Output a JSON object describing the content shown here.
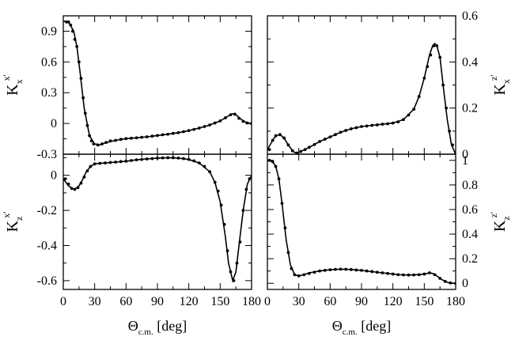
{
  "chart_data": [
    {
      "id": "kxx",
      "type": "line",
      "ylabel": {
        "base": "K",
        "sub": "x",
        "sup": "x'"
      },
      "xlim": [
        0,
        180
      ],
      "ylim": [
        -0.3,
        1.05
      ],
      "yticks": [
        -0.3,
        0,
        0.3,
        0.6,
        0.9
      ],
      "ytick_labels": [
        "-0.3",
        "0",
        "0.3",
        "0.6",
        "0.9"
      ],
      "xticks": [
        0,
        30,
        60,
        90,
        120,
        150,
        180
      ],
      "xtick_labels": [],
      "yaxis_side": "left",
      "series": [
        {
          "style": "line",
          "x": [
            0,
            5,
            10,
            13,
            16,
            20,
            25,
            30,
            35,
            40,
            50,
            60,
            70,
            80,
            90,
            100,
            110,
            120,
            130,
            140,
            150,
            155,
            158,
            162,
            165,
            170,
            175,
            178,
            180
          ],
          "y": [
            1.0,
            0.99,
            0.9,
            0.75,
            0.5,
            0.15,
            -0.12,
            -0.2,
            -0.21,
            -0.19,
            -0.165,
            -0.148,
            -0.14,
            -0.13,
            -0.118,
            -0.105,
            -0.09,
            -0.07,
            -0.045,
            -0.015,
            0.025,
            0.055,
            0.075,
            0.095,
            0.085,
            0.04,
            0.01,
            0.0,
            0.0
          ]
        },
        {
          "style": "points",
          "x": [
            3,
            5,
            7,
            9,
            11,
            13,
            15,
            17,
            19,
            21,
            23,
            25,
            27,
            29,
            33,
            37,
            41,
            45,
            50,
            55,
            60,
            65,
            70,
            75,
            80,
            85,
            90,
            95,
            100,
            105,
            110,
            115,
            120,
            125,
            130,
            135,
            140,
            145,
            150,
            155,
            160,
            164,
            168,
            172,
            176,
            180
          ],
          "y": [
            0.99,
            0.99,
            0.96,
            0.9,
            0.82,
            0.75,
            0.6,
            0.44,
            0.25,
            0.1,
            -0.02,
            -0.12,
            -0.17,
            -0.2,
            -0.21,
            -0.2,
            -0.185,
            -0.17,
            -0.165,
            -0.155,
            -0.148,
            -0.144,
            -0.14,
            -0.135,
            -0.13,
            -0.124,
            -0.118,
            -0.11,
            -0.105,
            -0.097,
            -0.09,
            -0.08,
            -0.07,
            -0.058,
            -0.045,
            -0.03,
            -0.015,
            0.005,
            0.025,
            0.055,
            0.085,
            0.09,
            0.05,
            0.02,
            0.005,
            0.0
          ]
        }
      ]
    },
    {
      "id": "kxz",
      "type": "line",
      "ylabel": {
        "base": "K",
        "sub": "x",
        "sup": "z'"
      },
      "xlim": [
        0,
        180
      ],
      "ylim": [
        0,
        0.6
      ],
      "yticks": [
        0,
        0.2,
        0.4,
        0.6
      ],
      "ytick_labels": [
        "0",
        "0.2",
        "0.4",
        "0.6"
      ],
      "xticks": [
        0,
        30,
        60,
        90,
        120,
        150,
        180
      ],
      "xtick_labels": [],
      "yaxis_side": "right",
      "series": [
        {
          "style": "line",
          "x": [
            0,
            5,
            8,
            12,
            16,
            20,
            25,
            28,
            32,
            40,
            50,
            60,
            70,
            80,
            90,
            100,
            110,
            120,
            130,
            140,
            145,
            150,
            155,
            158,
            160,
            162,
            165,
            168,
            172,
            176,
            180
          ],
          "y": [
            0.02,
            0.06,
            0.08,
            0.085,
            0.07,
            0.04,
            0.01,
            0.005,
            0.012,
            0.03,
            0.055,
            0.075,
            0.095,
            0.11,
            0.12,
            0.125,
            0.13,
            0.135,
            0.15,
            0.195,
            0.25,
            0.33,
            0.43,
            0.47,
            0.48,
            0.47,
            0.42,
            0.3,
            0.15,
            0.04,
            0.0
          ]
        },
        {
          "style": "points",
          "x": [
            2,
            5,
            8,
            12,
            16,
            20,
            24,
            28,
            32,
            36,
            40,
            45,
            50,
            55,
            60,
            65,
            70,
            75,
            80,
            85,
            90,
            95,
            100,
            105,
            110,
            115,
            120,
            125,
            130,
            135,
            140,
            145,
            150,
            153,
            156,
            159,
            162,
            165,
            168,
            171,
            174,
            177,
            180
          ],
          "y": [
            0.02,
            0.06,
            0.08,
            0.085,
            0.07,
            0.04,
            0.015,
            0.005,
            0.012,
            0.02,
            0.03,
            0.042,
            0.055,
            0.065,
            0.075,
            0.085,
            0.095,
            0.103,
            0.11,
            0.115,
            0.12,
            0.122,
            0.125,
            0.127,
            0.13,
            0.132,
            0.135,
            0.14,
            0.15,
            0.17,
            0.195,
            0.25,
            0.33,
            0.38,
            0.43,
            0.47,
            0.47,
            0.42,
            0.3,
            0.2,
            0.1,
            0.04,
            0.0
          ]
        }
      ]
    },
    {
      "id": "kzx",
      "type": "line",
      "ylabel": {
        "base": "K",
        "sub": "z",
        "sup": "x'"
      },
      "xlim": [
        0,
        180
      ],
      "ylim": [
        -0.65,
        0.12
      ],
      "yticks": [
        -0.6,
        -0.4,
        -0.2,
        0
      ],
      "ytick_labels": [
        "-0.6",
        "-0.4",
        "-0.2",
        "0"
      ],
      "xticks": [
        0,
        30,
        60,
        90,
        120,
        150,
        180
      ],
      "xtick_labels": [
        "0",
        "30",
        "60",
        "90",
        "120",
        "150",
        "180"
      ],
      "xlabel": {
        "base": "Θ",
        "sub": "c.m.",
        "rest": " [deg]"
      },
      "yaxis_side": "left",
      "series": [
        {
          "style": "line",
          "x": [
            0,
            5,
            10,
            14,
            18,
            22,
            26,
            30,
            40,
            50,
            60,
            70,
            80,
            90,
            100,
            110,
            120,
            130,
            140,
            145,
            150,
            155,
            158,
            162,
            165,
            168,
            172,
            176,
            180
          ],
          "y": [
            -0.02,
            -0.06,
            -0.08,
            -0.07,
            -0.03,
            0.02,
            0.05,
            0.065,
            0.07,
            0.075,
            0.08,
            0.088,
            0.093,
            0.098,
            0.1,
            0.098,
            0.09,
            0.07,
            0.02,
            -0.04,
            -0.15,
            -0.35,
            -0.5,
            -0.6,
            -0.55,
            -0.4,
            -0.2,
            -0.05,
            0.0
          ]
        },
        {
          "style": "points",
          "x": [
            2,
            5,
            8,
            11,
            14,
            17,
            20,
            23,
            26,
            30,
            35,
            40,
            45,
            50,
            55,
            60,
            65,
            70,
            75,
            80,
            85,
            90,
            95,
            100,
            105,
            110,
            115,
            120,
            125,
            130,
            135,
            140,
            145,
            148,
            151,
            154,
            157,
            160,
            163,
            166,
            169,
            172,
            175,
            178
          ],
          "y": [
            -0.02,
            -0.05,
            -0.075,
            -0.08,
            -0.07,
            -0.045,
            -0.01,
            0.025,
            0.05,
            0.065,
            0.068,
            0.07,
            0.073,
            0.075,
            0.078,
            0.08,
            0.084,
            0.088,
            0.09,
            0.093,
            0.095,
            0.098,
            0.099,
            0.1,
            0.1,
            0.098,
            0.095,
            0.09,
            0.082,
            0.07,
            0.05,
            0.02,
            -0.04,
            -0.09,
            -0.17,
            -0.28,
            -0.43,
            -0.55,
            -0.6,
            -0.5,
            -0.38,
            -0.2,
            -0.08,
            -0.02
          ]
        }
      ]
    },
    {
      "id": "kzz",
      "type": "line",
      "ylabel": {
        "base": "K",
        "sub": "z",
        "sup": "z'"
      },
      "xlim": [
        0,
        180
      ],
      "ylim": [
        -0.05,
        1.05
      ],
      "yticks": [
        0,
        0.2,
        0.4,
        0.6,
        0.8,
        1
      ],
      "ytick_labels": [
        "0",
        "0.2",
        "0.4",
        "0.6",
        "0.8",
        "1"
      ],
      "xticks": [
        0,
        30,
        60,
        90,
        120,
        150,
        180
      ],
      "xtick_labels": [
        "0",
        "30",
        "60",
        "90",
        "120",
        "150",
        "180"
      ],
      "xlabel": {
        "base": "Θ",
        "sub": "c.m.",
        "rest": " [deg]"
      },
      "yaxis_side": "right",
      "series": [
        {
          "style": "line",
          "x": [
            0,
            5,
            8,
            11,
            14,
            18,
            22,
            26,
            30,
            35,
            40,
            50,
            60,
            70,
            80,
            90,
            100,
            110,
            120,
            130,
            140,
            150,
            155,
            158,
            162,
            166,
            170,
            175,
            180
          ],
          "y": [
            1.0,
            0.99,
            0.95,
            0.85,
            0.65,
            0.35,
            0.15,
            0.07,
            0.06,
            0.07,
            0.085,
            0.1,
            0.11,
            0.115,
            0.112,
            0.105,
            0.095,
            0.085,
            0.075,
            0.068,
            0.068,
            0.075,
            0.085,
            0.08,
            0.06,
            0.035,
            0.015,
            0.0,
            0.0
          ]
        },
        {
          "style": "points",
          "x": [
            2,
            5,
            8,
            11,
            14,
            17,
            20,
            23,
            26,
            30,
            35,
            40,
            45,
            50,
            55,
            60,
            65,
            70,
            75,
            80,
            85,
            90,
            95,
            100,
            105,
            110,
            115,
            120,
            125,
            130,
            135,
            140,
            145,
            150,
            155,
            160,
            165,
            170,
            175,
            180
          ],
          "y": [
            1.0,
            0.99,
            0.95,
            0.85,
            0.65,
            0.45,
            0.25,
            0.12,
            0.07,
            0.06,
            0.07,
            0.08,
            0.09,
            0.1,
            0.105,
            0.11,
            0.113,
            0.115,
            0.114,
            0.112,
            0.108,
            0.105,
            0.1,
            0.095,
            0.09,
            0.085,
            0.08,
            0.075,
            0.07,
            0.068,
            0.067,
            0.068,
            0.07,
            0.075,
            0.085,
            0.07,
            0.04,
            0.015,
            0.003,
            0.0
          ]
        }
      ]
    }
  ]
}
